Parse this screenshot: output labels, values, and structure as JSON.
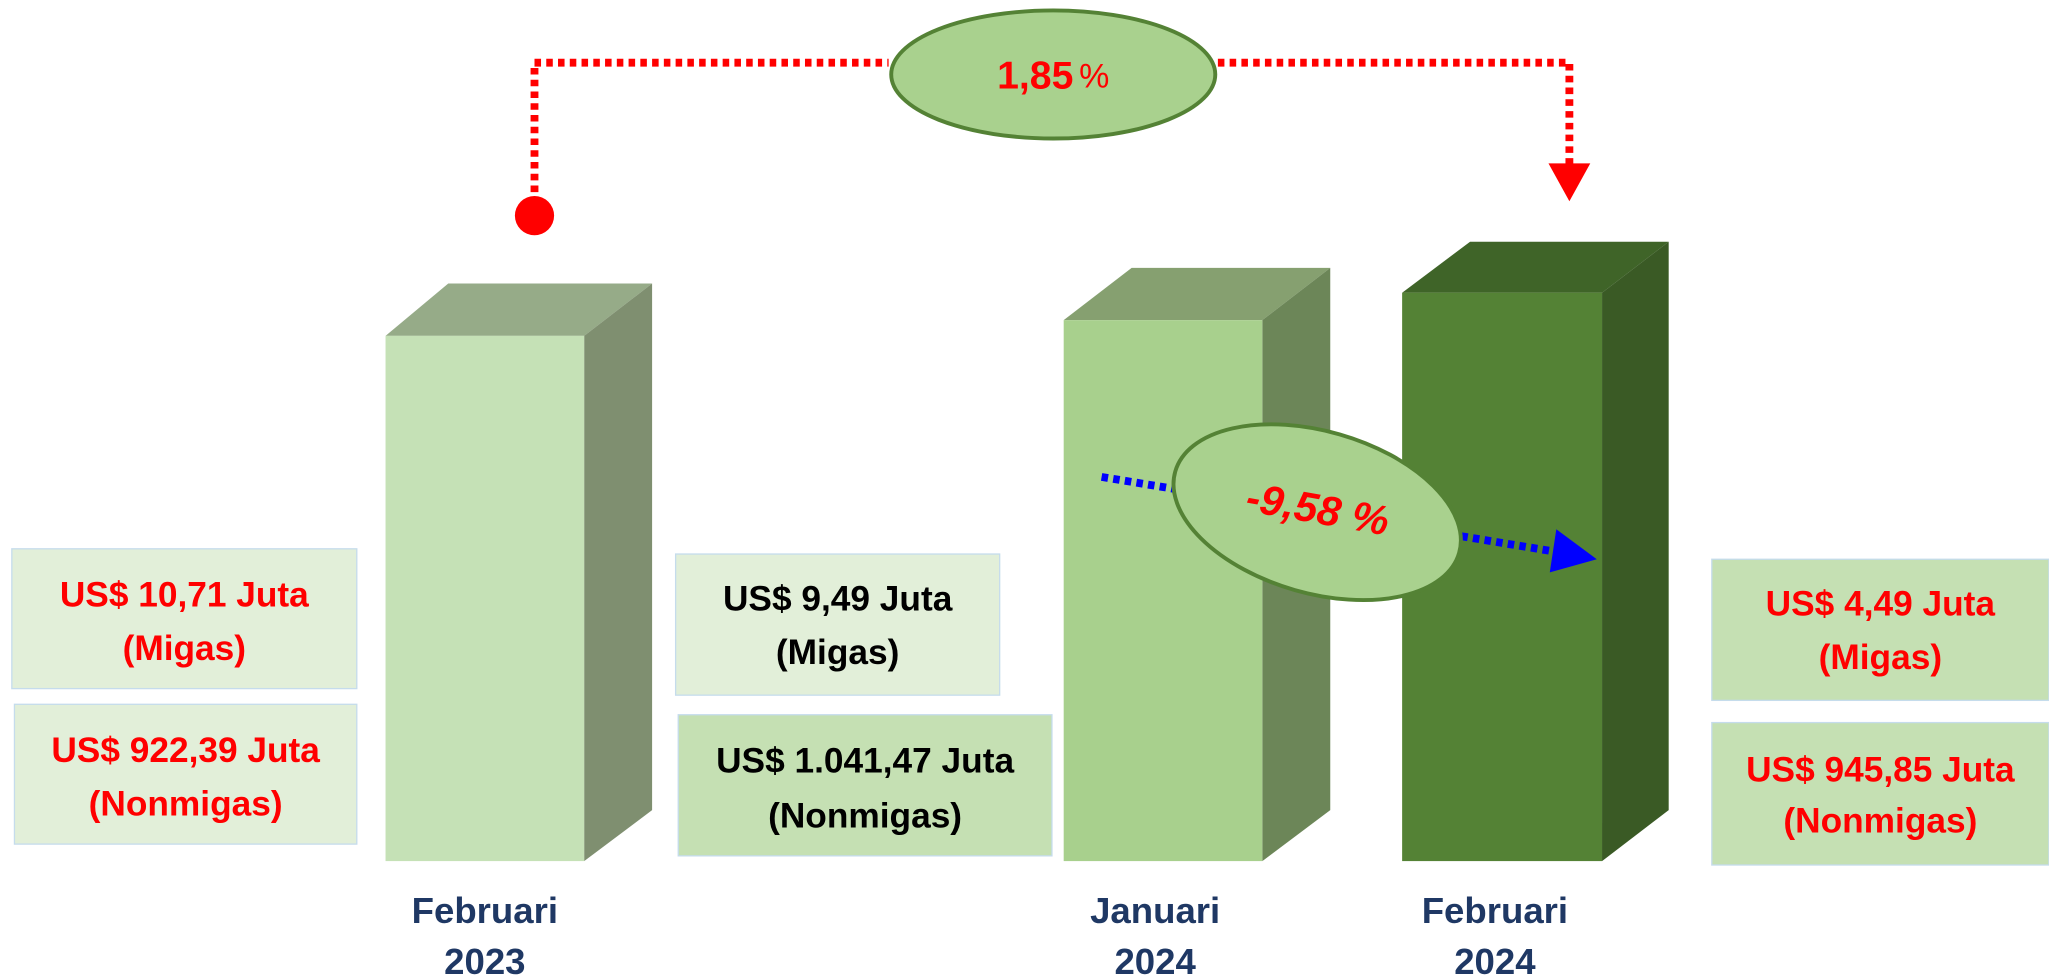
{
  "growth_yoy": {
    "value": "1,85",
    "unit": "%"
  },
  "growth_mom": "-9,58 %",
  "periods": [
    {
      "label": [
        "Februari",
        "2023"
      ],
      "migas": {
        "amount": "US$ 10,71 Juta",
        "type": "(Migas)"
      },
      "nonmigas": {
        "amount": "US$ 922,39 Juta",
        "type": "(Nonmigas)"
      }
    },
    {
      "label": [
        "Januari",
        "2024"
      ],
      "migas": {
        "amount": "US$ 9,49 Juta",
        "type": "(Migas)"
      },
      "nonmigas": {
        "amount": "US$ 1.041,47 Juta",
        "type": "(Nonmigas)"
      }
    },
    {
      "label": [
        "Februari",
        "2024"
      ],
      "migas": {
        "amount": "US$ 4,49 Juta",
        "type": "(Migas)"
      },
      "nonmigas": {
        "amount": "US$ 945,85 Juta",
        "type": "(Nonmigas)"
      }
    }
  ]
}
